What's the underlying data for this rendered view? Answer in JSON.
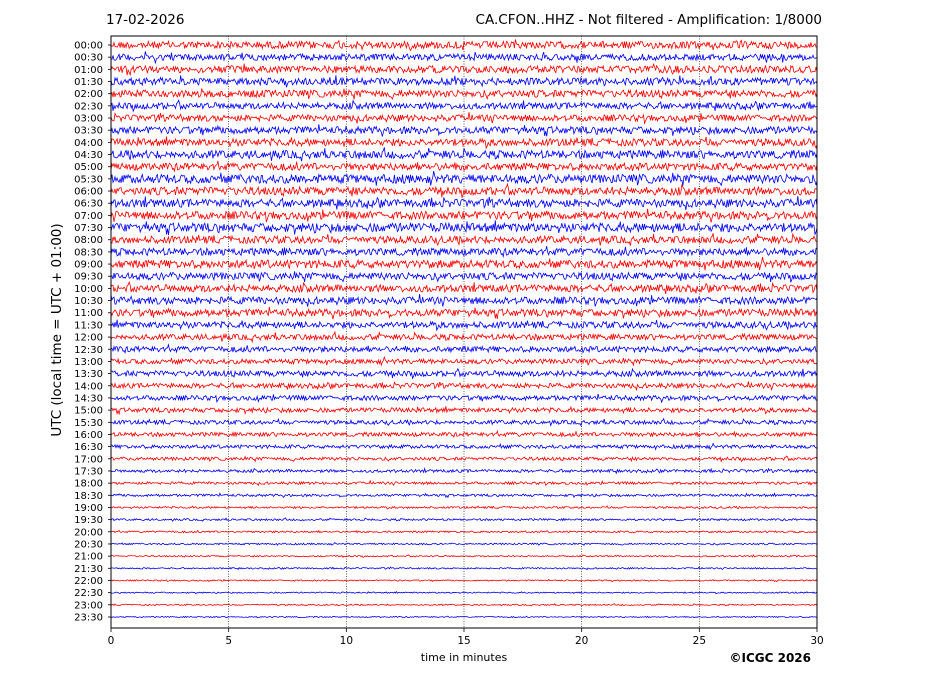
{
  "header": {
    "date": "17-02-2026",
    "station_info": "CA.CFON..HHZ - Not filtered - Amplification: 1/8000"
  },
  "footer": {
    "copyright": "©ICGC 2026"
  },
  "chart_data": {
    "type": "line",
    "title": "CA.CFON..HHZ - Not filtered - Amplification: 1/8000",
    "xlabel": "time in minutes",
    "ylabel": "UTC (local time = UTC + 01:00)",
    "xlim": [
      0,
      30
    ],
    "x_ticks": [
      "0",
      "5",
      "10",
      "15",
      "20",
      "25",
      "30"
    ],
    "grid": "vertical dotted lines at each x tick",
    "colors": {
      "odd_trace": "#ff0000",
      "even_trace": "#0000ff",
      "grid": "#000000"
    },
    "row_labels": [
      "00:00",
      "00:30",
      "01:00",
      "01:30",
      "02:00",
      "02:30",
      "03:00",
      "03:30",
      "04:00",
      "04:30",
      "05:00",
      "05:30",
      "06:00",
      "06:30",
      "07:00",
      "07:30",
      "08:00",
      "08:30",
      "09:00",
      "09:30",
      "10:00",
      "10:30",
      "11:00",
      "11:30",
      "12:00",
      "12:30",
      "13:00",
      "13:30",
      "14:00",
      "14:30",
      "15:00",
      "15:30",
      "16:00",
      "16:30",
      "17:00",
      "17:30",
      "18:00",
      "18:30",
      "19:00",
      "19:30",
      "20:00",
      "20:30",
      "21:00",
      "21:30",
      "22:00",
      "22:30",
      "23:00",
      "23:30"
    ],
    "relative_amplitude": [
      0.45,
      0.4,
      0.45,
      0.45,
      0.45,
      0.4,
      0.4,
      0.45,
      0.45,
      0.5,
      0.45,
      0.55,
      0.5,
      0.5,
      0.5,
      0.55,
      0.45,
      0.45,
      0.5,
      0.45,
      0.45,
      0.45,
      0.45,
      0.4,
      0.35,
      0.35,
      0.3,
      0.35,
      0.3,
      0.3,
      0.28,
      0.25,
      0.25,
      0.22,
      0.2,
      0.18,
      0.16,
      0.15,
      0.12,
      0.12,
      0.11,
      0.1,
      0.09,
      0.09,
      0.08,
      0.08,
      0.08,
      0.07
    ]
  }
}
